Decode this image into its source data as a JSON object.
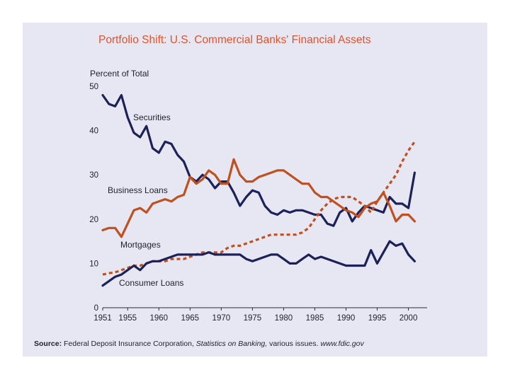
{
  "chart_data": {
    "type": "line",
    "title": "Portfolio Shift: U.S. Commercial Banks' Financial Assets",
    "ylabel": "Percent of Total",
    "xlabel": "",
    "ylim": [
      0,
      50
    ],
    "xlim": [
      1951,
      2003
    ],
    "yticks": [
      0,
      10,
      20,
      30,
      40,
      50
    ],
    "xticks": [
      1951,
      1955,
      1960,
      1965,
      1970,
      1975,
      1980,
      1985,
      1990,
      1995,
      2000
    ],
    "series": [
      {
        "name": "Securities",
        "color": "#1c2158",
        "dashed": false,
        "x": [
          1951,
          1952,
          1953,
          1954,
          1955,
          1956,
          1957,
          1958,
          1959,
          1960,
          1961,
          1962,
          1963,
          1964,
          1965,
          1966,
          1967,
          1968,
          1969,
          1970,
          1971,
          1972,
          1973,
          1974,
          1975,
          1976,
          1977,
          1978,
          1979,
          1980,
          1981,
          1982,
          1983,
          1984,
          1985,
          1986,
          1987,
          1988,
          1989,
          1990,
          1991,
          1992,
          1993,
          1994,
          1995,
          1996,
          1997,
          1998,
          1999,
          2000,
          2001
        ],
        "y": [
          48,
          46,
          45.5,
          48,
          43,
          39.5,
          38.5,
          41,
          36,
          35,
          37.5,
          37,
          34.5,
          33,
          29.5,
          28.5,
          30,
          29,
          27,
          28.5,
          28.5,
          26,
          23,
          25,
          26.5,
          26,
          23,
          21.5,
          21,
          22,
          21.5,
          22,
          22,
          21.5,
          21,
          21,
          19,
          18.5,
          21.5,
          22.5,
          19.5,
          21.5,
          23,
          22.5,
          22,
          21.5,
          25,
          23.5,
          23.5,
          22.5,
          30.5
        ]
      },
      {
        "name": "Business Loans",
        "color": "#c1501f",
        "dashed": false,
        "x": [
          1951,
          1952,
          1953,
          1954,
          1955,
          1956,
          1957,
          1958,
          1959,
          1960,
          1961,
          1962,
          1963,
          1964,
          1965,
          1966,
          1967,
          1968,
          1969,
          1970,
          1971,
          1972,
          1973,
          1974,
          1975,
          1976,
          1977,
          1978,
          1979,
          1980,
          1981,
          1982,
          1983,
          1984,
          1985,
          1986,
          1987,
          1988,
          1989,
          1990,
          1991,
          1992,
          1993,
          1994,
          1995,
          1996,
          1997,
          1998,
          1999,
          2000,
          2001
        ],
        "y": [
          17.5,
          18,
          18,
          16,
          19,
          22,
          22.5,
          21.5,
          23.5,
          24,
          24.5,
          24,
          25,
          25.5,
          29.5,
          28,
          29,
          31,
          30,
          28,
          28,
          33.5,
          30,
          28.5,
          28.5,
          29.5,
          30,
          30.5,
          31,
          31,
          30,
          29,
          28,
          28,
          26,
          25,
          25,
          24,
          23,
          22,
          21.5,
          20.5,
          22.5,
          23.5,
          24,
          26,
          23,
          19.5,
          21,
          21,
          19.5
        ]
      },
      {
        "name": "Mortgages",
        "color": "#c1501f",
        "dashed": true,
        "x": [
          1951,
          1952,
          1953,
          1954,
          1955,
          1956,
          1957,
          1958,
          1959,
          1960,
          1961,
          1962,
          1963,
          1964,
          1965,
          1966,
          1967,
          1968,
          1969,
          1970,
          1971,
          1972,
          1973,
          1974,
          1975,
          1976,
          1977,
          1978,
          1979,
          1980,
          1981,
          1982,
          1983,
          1984,
          1985,
          1986,
          1987,
          1988,
          1989,
          1990,
          1991,
          1992,
          1993,
          1994,
          1995,
          1996,
          1997,
          1998,
          1999,
          2000,
          2001
        ],
        "y": [
          7.5,
          7.8,
          8,
          8.5,
          9,
          9.5,
          9.5,
          10,
          10.5,
          10.5,
          10.5,
          11,
          11,
          11,
          11.5,
          12,
          12.5,
          12.5,
          12.5,
          12.5,
          13.5,
          14,
          14,
          14.5,
          15,
          15.5,
          16,
          16.5,
          16.5,
          16.5,
          16.5,
          16.5,
          17,
          18,
          20,
          22,
          23.5,
          24.5,
          25,
          25,
          25,
          24,
          23,
          21.5,
          24,
          26,
          28,
          30,
          33,
          35.5,
          37.5
        ]
      },
      {
        "name": "Consumer Loans",
        "color": "#1c2158",
        "dashed": false,
        "x": [
          1951,
          1952,
          1953,
          1954,
          1955,
          1956,
          1957,
          1958,
          1959,
          1960,
          1961,
          1962,
          1963,
          1964,
          1965,
          1966,
          1967,
          1968,
          1969,
          1970,
          1971,
          1972,
          1973,
          1974,
          1975,
          1976,
          1977,
          1978,
          1979,
          1980,
          1981,
          1982,
          1983,
          1984,
          1985,
          1986,
          1987,
          1988,
          1989,
          1990,
          1991,
          1992,
          1993,
          1994,
          1995,
          1996,
          1997,
          1998,
          1999,
          2000,
          2001
        ],
        "y": [
          5,
          6,
          7,
          7.5,
          8.5,
          9.5,
          8.5,
          10,
          10.5,
          10.5,
          11,
          11.5,
          12,
          12,
          12,
          12,
          12,
          12.5,
          12,
          12,
          12,
          12,
          12,
          11,
          10.5,
          11,
          11.5,
          12,
          12,
          11,
          10,
          10,
          11,
          12,
          11,
          11.5,
          11,
          10.5,
          10,
          9.5,
          9.5,
          9.5,
          9.5,
          13,
          10,
          12.5,
          15,
          14,
          14.5,
          12,
          10.5
        ]
      }
    ],
    "series_labels": {
      "securities": "Securities",
      "business_loans": "Business Loans",
      "mortgages": "Mortgages",
      "consumer_loans": "Consumer Loans"
    }
  },
  "source": {
    "label": "Source:",
    "text1": " Federal Deposit Insurance Corporation, ",
    "italic": "Statistics on Banking,",
    "text2": " various issues. ",
    "url": "www.fdic.gov"
  }
}
